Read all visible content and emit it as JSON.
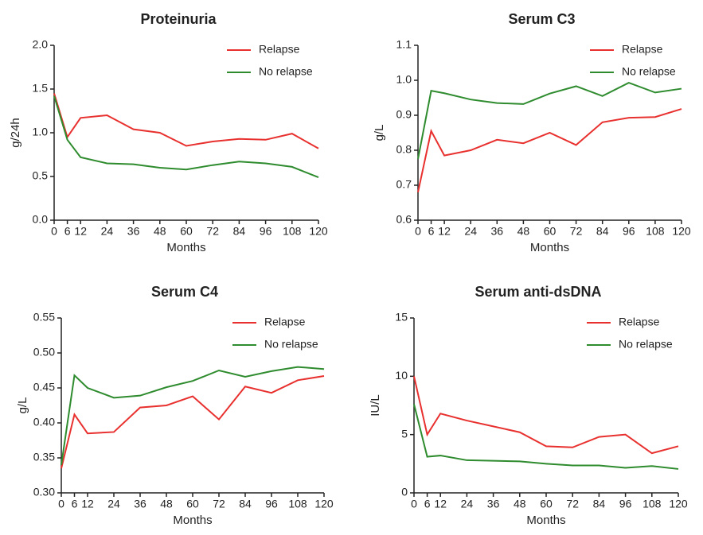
{
  "chart_data": [
    {
      "type": "line",
      "title": "Proteinuria",
      "x_label": "Months",
      "y_label": "g/24h",
      "x": [
        0,
        6,
        12,
        24,
        36,
        48,
        60,
        72,
        84,
        96,
        108,
        120
      ],
      "xlim": [
        0,
        120
      ],
      "xticks": [
        0,
        6,
        12,
        24,
        36,
        48,
        60,
        72,
        84,
        96,
        108,
        120
      ],
      "ylim": [
        0,
        2
      ],
      "yticks": [
        {
          "value": 0,
          "label": "0.0"
        },
        0.5,
        {
          "value": 1,
          "label": "1.0"
        },
        1.5,
        {
          "value": 2,
          "label": "2.0"
        }
      ],
      "legend": "upper right",
      "series": [
        {
          "name": "Relapse",
          "color": "#e8312f",
          "values": [
            1.45,
            0.95,
            1.17,
            1.2,
            1.04,
            1.0,
            0.85,
            0.9,
            0.93,
            0.92,
            0.99,
            0.82
          ]
        },
        {
          "name": "No relapse",
          "color": "#2e8b2e",
          "values": [
            1.42,
            0.92,
            0.72,
            0.65,
            0.64,
            0.6,
            0.58,
            0.63,
            0.67,
            0.65,
            0.61,
            0.49
          ]
        }
      ]
    },
    {
      "type": "line",
      "title": "Serum C3",
      "x_label": "Months",
      "y_label": "g/L",
      "x": [
        0,
        6,
        12,
        24,
        36,
        48,
        60,
        72,
        84,
        96,
        108,
        120
      ],
      "xlim": [
        0,
        120
      ],
      "xticks": [
        0,
        6,
        12,
        24,
        36,
        48,
        60,
        72,
        84,
        96,
        108,
        120
      ],
      "ylim": [
        0.6,
        1.1
      ],
      "yticks": [
        0.6,
        0.7,
        0.8,
        0.9,
        {
          "value": 1,
          "label": "1.0"
        },
        1.1
      ],
      "legend": "upper right",
      "series": [
        {
          "name": "Relapse",
          "color": "#e8312f",
          "values": [
            0.68,
            0.855,
            0.785,
            0.8,
            0.83,
            0.82,
            0.85,
            0.815,
            0.88,
            0.893,
            0.895,
            0.918
          ]
        },
        {
          "name": "No relapse",
          "color": "#2e8b2e",
          "values": [
            0.775,
            0.97,
            0.963,
            0.945,
            0.935,
            0.932,
            0.962,
            0.983,
            0.955,
            0.993,
            0.965,
            0.976
          ]
        }
      ]
    },
    {
      "type": "line",
      "title": "Serum C4",
      "x_label": "Months",
      "y_label": "g/L",
      "x": [
        0,
        6,
        12,
        24,
        36,
        48,
        60,
        72,
        84,
        96,
        108,
        120
      ],
      "xlim": [
        0,
        120
      ],
      "xticks": [
        0,
        6,
        12,
        24,
        36,
        48,
        60,
        72,
        84,
        96,
        108,
        120
      ],
      "ylim": [
        0.3,
        0.55
      ],
      "yticks": [
        {
          "value": 0.3,
          "label": "0.30"
        },
        0.35,
        {
          "value": 0.4,
          "label": "0.40"
        },
        0.45,
        {
          "value": 0.5,
          "label": "0.50"
        },
        0.55
      ],
      "legend": "upper right",
      "series": [
        {
          "name": "Relapse",
          "color": "#e8312f",
          "values": [
            0.335,
            0.412,
            0.385,
            0.387,
            0.422,
            0.425,
            0.438,
            0.405,
            0.452,
            0.443,
            0.461,
            0.467
          ]
        },
        {
          "name": "No relapse",
          "color": "#2e8b2e",
          "values": [
            0.34,
            0.468,
            0.45,
            0.436,
            0.439,
            0.451,
            0.46,
            0.475,
            0.466,
            0.474,
            0.48,
            0.477
          ]
        }
      ]
    },
    {
      "type": "line",
      "title": "Serum anti-dsDNA",
      "x_label": "Months",
      "y_label": "IU/L",
      "x": [
        0,
        6,
        12,
        24,
        36,
        48,
        60,
        72,
        84,
        96,
        108,
        120
      ],
      "xlim": [
        0,
        120
      ],
      "xticks": [
        0,
        6,
        12,
        24,
        36,
        48,
        60,
        72,
        84,
        96,
        108,
        120
      ],
      "ylim": [
        0,
        15
      ],
      "yticks": [
        0,
        5,
        10,
        15
      ],
      "legend": "upper right",
      "series": [
        {
          "name": "Relapse",
          "color": "#e8312f",
          "values": [
            10,
            5,
            6.8,
            6.2,
            5.7,
            5.2,
            4.0,
            3.9,
            4.8,
            5.0,
            3.4,
            4.0
          ]
        },
        {
          "name": "No relapse",
          "color": "#2e8b2e",
          "values": [
            7.6,
            3.1,
            3.2,
            2.8,
            2.75,
            2.7,
            2.5,
            2.35,
            2.35,
            2.15,
            2.3,
            2.05
          ]
        }
      ]
    }
  ]
}
